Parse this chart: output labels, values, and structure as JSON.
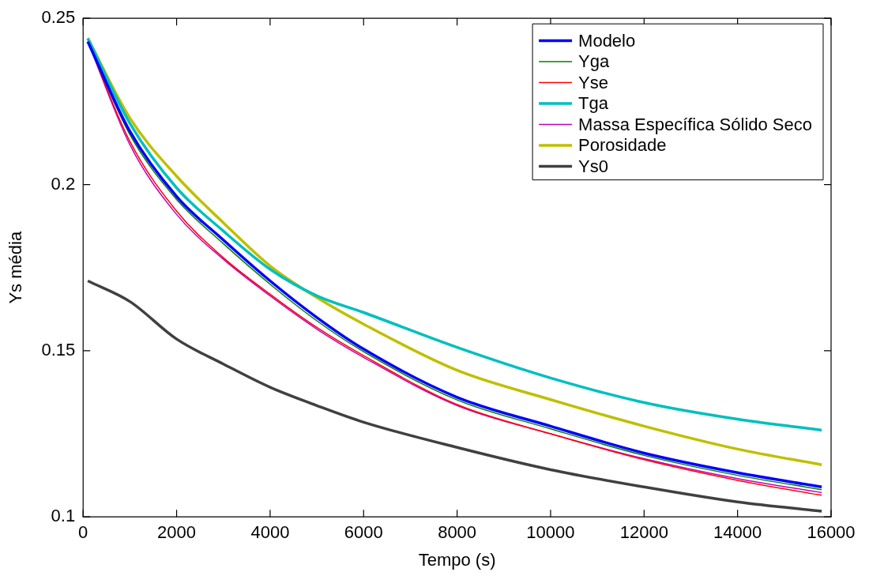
{
  "chart_data": {
    "type": "line",
    "xlabel": "Tempo (s)",
    "ylabel": "Ys média",
    "x": [
      100,
      1000,
      2000,
      3000,
      4000,
      5000,
      6000,
      8000,
      10000,
      12000,
      14000,
      15800
    ],
    "xlim": [
      0,
      16000
    ],
    "xticks": [
      0,
      2000,
      4000,
      6000,
      8000,
      10000,
      12000,
      14000,
      16000
    ],
    "ylim": [
      0.1,
      0.25
    ],
    "yticks": [
      0.1,
      0.15,
      0.2,
      0.25
    ],
    "grid": false,
    "legend": "top right",
    "marker": "none",
    "line_style": "solid",
    "series": [
      {
        "name": "Modelo",
        "color": "#0000ff",
        "values": [
          0.243,
          0.216,
          0.1964,
          0.1833,
          0.171,
          0.16,
          0.1505,
          0.136,
          0.1273,
          0.1192,
          0.1133,
          0.109
        ]
      },
      {
        "name": "Yga",
        "color": "#008000",
        "values": [
          0.243,
          0.215,
          0.1955,
          0.1822,
          0.17,
          0.159,
          0.1497,
          0.1352,
          0.1265,
          0.1185,
          0.1125,
          0.1082
        ]
      },
      {
        "name": "Yse",
        "color": "#ff0000",
        "values": [
          0.243,
          0.213,
          0.192,
          0.178,
          0.167,
          0.157,
          0.1485,
          0.1338,
          0.125,
          0.1172,
          0.111,
          0.1065
        ]
      },
      {
        "name": "Tga",
        "color": "#00bfbf",
        "values": [
          0.244,
          0.2184,
          0.199,
          0.186,
          0.1745,
          0.1665,
          0.1615,
          0.151,
          0.1418,
          0.1344,
          0.1294,
          0.1261
        ]
      },
      {
        "name": "Massa Específica Sólido Seco",
        "color": "#bf00bf",
        "values": [
          0.243,
          0.212,
          0.191,
          0.1775,
          0.1665,
          0.1565,
          0.148,
          0.1335,
          0.125,
          0.1175,
          0.1115,
          0.1073
        ]
      },
      {
        "name": "Porosidade",
        "color": "#bfbf00",
        "values": [
          0.244,
          0.22,
          0.2025,
          0.1885,
          0.1755,
          0.166,
          0.158,
          0.1441,
          0.1353,
          0.1273,
          0.1204,
          0.1157
        ]
      },
      {
        "name": "Ys0",
        "color": "#404040",
        "values": [
          0.171,
          0.1648,
          0.1535,
          0.146,
          0.139,
          0.1335,
          0.1285,
          0.1209,
          0.1142,
          0.109,
          0.1045,
          0.1017
        ]
      }
    ]
  }
}
